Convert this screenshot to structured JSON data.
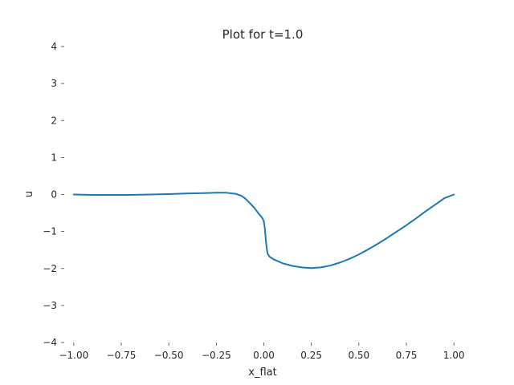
{
  "chart_data": {
    "type": "line",
    "title": "Plot for t=1.0",
    "xlabel": "x_flat",
    "ylabel": "u",
    "xlim": [
      -1.05,
      1.05
    ],
    "ylim": [
      -4,
      4
    ],
    "xticks": [
      -1.0,
      -0.75,
      -0.5,
      -0.25,
      0.0,
      0.25,
      0.5,
      0.75,
      1.0
    ],
    "xtick_labels": [
      "−1.00",
      "−0.75",
      "−0.50",
      "−0.25",
      "0.00",
      "0.25",
      "0.50",
      "0.75",
      "1.00"
    ],
    "yticks": [
      4,
      3,
      2,
      1,
      0,
      -1,
      -2,
      -3,
      -4
    ],
    "ytick_labels": [
      "4",
      "3",
      "2",
      "1",
      "0",
      "−1",
      "−2",
      "−3",
      "−4"
    ],
    "grid": false,
    "series": [
      {
        "color": "#1f77b4",
        "x": [
          -1.0,
          -0.9,
          -0.8,
          -0.7,
          -0.6,
          -0.5,
          -0.4,
          -0.3,
          -0.25,
          -0.2,
          -0.15,
          -0.12,
          -0.1,
          -0.08,
          -0.05,
          -0.03,
          -0.01,
          0.0,
          0.005,
          0.01,
          0.015,
          0.02,
          0.03,
          0.05,
          0.1,
          0.15,
          0.2,
          0.25,
          0.3,
          0.35,
          0.4,
          0.45,
          0.5,
          0.55,
          0.6,
          0.65,
          0.7,
          0.75,
          0.8,
          0.85,
          0.9,
          0.95,
          1.0
        ],
        "y": [
          0.0,
          -0.01,
          -0.01,
          -0.01,
          0.0,
          0.01,
          0.03,
          0.04,
          0.05,
          0.05,
          0.02,
          -0.03,
          -0.1,
          -0.2,
          -0.36,
          -0.5,
          -0.62,
          -0.72,
          -0.9,
          -1.2,
          -1.45,
          -1.6,
          -1.68,
          -1.75,
          -1.86,
          -1.93,
          -1.97,
          -1.99,
          -1.97,
          -1.92,
          -1.84,
          -1.74,
          -1.62,
          -1.48,
          -1.33,
          -1.17,
          -1.0,
          -0.83,
          -0.65,
          -0.46,
          -0.28,
          -0.1,
          0.0
        ]
      }
    ]
  }
}
